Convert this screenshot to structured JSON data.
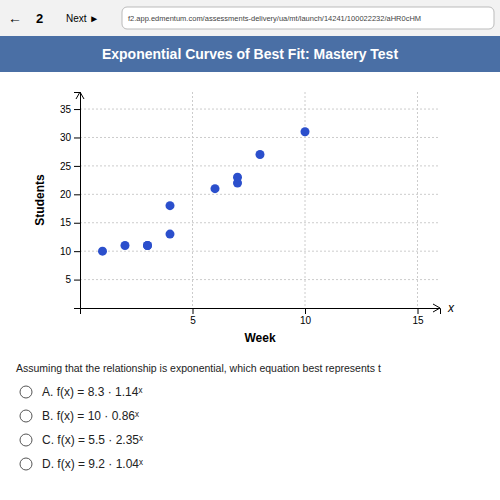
{
  "chart_data": {
    "type": "scatter",
    "title": "Exponential Curves of Best Fit: Mastery Test",
    "xlabel": "Week",
    "ylabel": "Students",
    "x": [
      1,
      2,
      3,
      3,
      4,
      4,
      6,
      7,
      7,
      8,
      10
    ],
    "values": [
      10,
      11,
      11,
      11,
      13,
      18,
      21,
      22,
      23,
      27,
      31
    ],
    "color": "#2b4fcc",
    "xlim": [
      0,
      16
    ],
    "ylim": [
      0,
      38
    ],
    "xticks": [
      5,
      10,
      15
    ],
    "yticks": [
      5,
      10,
      15,
      20,
      25,
      30,
      35
    ],
    "grid": true,
    "annotations": [
      "←",
      "2",
      "Next ►",
      "f2.app.edmentum.com/assessments-delivery/ua/mt/launch/14241/100022232/aHR0cHM",
      "Assuming that the relationship is exponential, which equation best represents t",
      "A.   f(x) = 8.3 · 1.14ˣ",
      "B.   f(x) = 10 · 0.86ˣ",
      "C.   f(x) = 5.5 · 2.35ˣ",
      "D.   f(x) = 9.2 · 1.04ˣ",
      "x"
    ]
  }
}
